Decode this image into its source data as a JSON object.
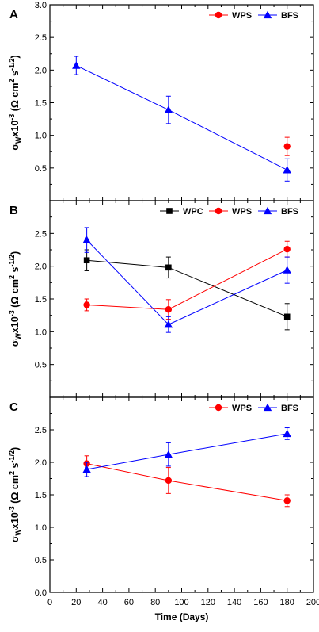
{
  "chart_data": [
    {
      "panel_letter": "A",
      "type": "line",
      "ylabel": "σ_W x10^-3 (Ω cm² s^-1/2)",
      "ylim": [
        0.0,
        3.0
      ],
      "yticks": [
        "0.5",
        "1.0",
        "1.5",
        "2.0",
        "2.5",
        "3.0"
      ],
      "legend": {
        "position": "top-right",
        "orientation": "horizontal"
      },
      "series": [
        {
          "name": "WPS",
          "color": "#ff0000",
          "marker": "circle",
          "x": [
            180
          ],
          "y": [
            0.83
          ],
          "err": [
            0.14
          ]
        },
        {
          "name": "BFS",
          "color": "#0000ff",
          "marker": "triangle",
          "x": [
            20,
            90,
            180
          ],
          "y": [
            2.07,
            1.39,
            0.47
          ],
          "err": [
            0.14,
            0.21,
            0.17
          ]
        }
      ]
    },
    {
      "panel_letter": "B",
      "type": "line",
      "ylabel": "σ_W x10^-3 (Ω cm² s^-1/2)",
      "ylim": [
        0.0,
        3.0
      ],
      "yticks": [
        "0.5",
        "1.0",
        "1.5",
        "2.0",
        "2.5"
      ],
      "legend": {
        "position": "top-right",
        "orientation": "horizontal"
      },
      "series": [
        {
          "name": "WPC",
          "color": "#000000",
          "marker": "square",
          "x": [
            28,
            90,
            180
          ],
          "y": [
            2.09,
            1.98,
            1.23
          ],
          "err": [
            0.16,
            0.16,
            0.2
          ]
        },
        {
          "name": "WPS",
          "color": "#ff0000",
          "marker": "circle",
          "x": [
            28,
            90,
            180
          ],
          "y": [
            1.41,
            1.34,
            2.26
          ],
          "err": [
            0.09,
            0.15,
            0.12
          ]
        },
        {
          "name": "BFS",
          "color": "#0000ff",
          "marker": "triangle",
          "x": [
            28,
            90,
            180
          ],
          "y": [
            2.4,
            1.11,
            1.94
          ],
          "err": [
            0.19,
            0.12,
            0.2
          ]
        }
      ]
    },
    {
      "panel_letter": "C",
      "type": "line",
      "ylabel": "σ_W x10^-3 (Ω cm² s^-1/2)",
      "ylim": [
        0.0,
        3.0
      ],
      "yticks": [
        "0.0",
        "0.5",
        "1.0",
        "1.5",
        "2.0",
        "2.5"
      ],
      "legend": {
        "position": "top-right",
        "orientation": "horizontal"
      },
      "series": [
        {
          "name": "WPS",
          "color": "#ff0000",
          "marker": "circle",
          "x": [
            28,
            90,
            180
          ],
          "y": [
            1.98,
            1.72,
            1.41
          ],
          "err": [
            0.12,
            0.2,
            0.09
          ]
        },
        {
          "name": "BFS",
          "color": "#0000ff",
          "marker": "triangle",
          "x": [
            28,
            90,
            180
          ],
          "y": [
            1.89,
            2.12,
            2.44
          ],
          "err": [
            0.11,
            0.18,
            0.09
          ]
        }
      ]
    }
  ],
  "x_axis": {
    "label": "Time (Days)",
    "xlim": [
      0,
      200
    ],
    "ticks": [
      "0",
      "20",
      "40",
      "60",
      "80",
      "100",
      "120",
      "140",
      "160",
      "180",
      "200"
    ]
  }
}
